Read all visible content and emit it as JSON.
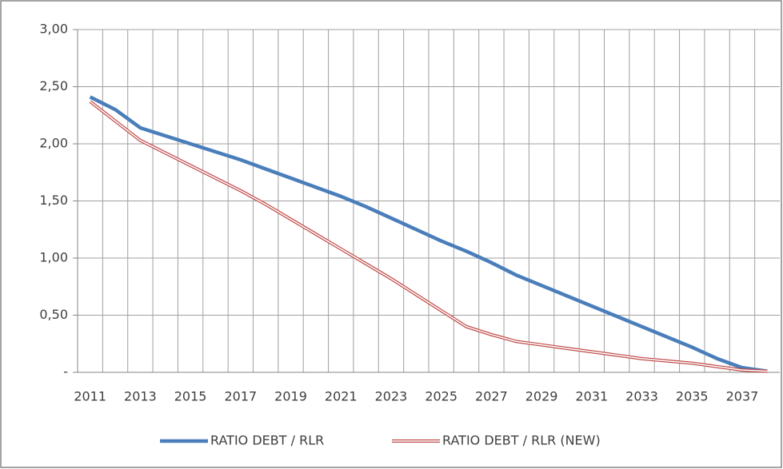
{
  "chart_data": {
    "type": "line",
    "categories": [
      "2011",
      null,
      "2013",
      null,
      "2015",
      null,
      "2017",
      null,
      "2019",
      null,
      "2021",
      null,
      "2023",
      null,
      "2025",
      null,
      "2027",
      null,
      "2029",
      null,
      "2031",
      null,
      "2033",
      null,
      "2035",
      null,
      "2037",
      null
    ],
    "series": [
      {
        "name": "RATIO DEBT / RLR",
        "color": "#4a7ebb",
        "values": [
          2.41,
          2.3,
          2.14,
          2.07,
          2.0,
          1.93,
          1.86,
          1.78,
          1.7,
          1.62,
          1.54,
          1.45,
          1.35,
          1.25,
          1.15,
          1.06,
          0.96,
          0.85,
          0.76,
          0.67,
          0.58,
          0.49,
          0.4,
          0.31,
          0.22,
          0.12,
          0.04,
          0.01
        ]
      },
      {
        "name": "RATIO DEBT / RLR (NEW)",
        "color": "#c0504d",
        "values": [
          2.37,
          2.2,
          2.03,
          1.92,
          1.81,
          1.7,
          1.59,
          1.47,
          1.34,
          1.21,
          1.08,
          0.95,
          0.82,
          0.68,
          0.54,
          0.4,
          0.33,
          0.27,
          0.24,
          0.21,
          0.18,
          0.15,
          0.12,
          0.1,
          0.08,
          0.05,
          0.02,
          0.01
        ]
      }
    ],
    "ylim": [
      0,
      3
    ],
    "yticks": [
      {
        "value": 0,
        "label": "-"
      },
      {
        "value": 0.5,
        "label": "0,50"
      },
      {
        "value": 1,
        "label": "1,00"
      },
      {
        "value": 1.5,
        "label": "1,50"
      },
      {
        "value": 2,
        "label": "2,00"
      },
      {
        "value": 2.5,
        "label": "2,50"
      },
      {
        "value": 3,
        "label": "3,00"
      }
    ],
    "grid": true,
    "legend": "bottom"
  }
}
